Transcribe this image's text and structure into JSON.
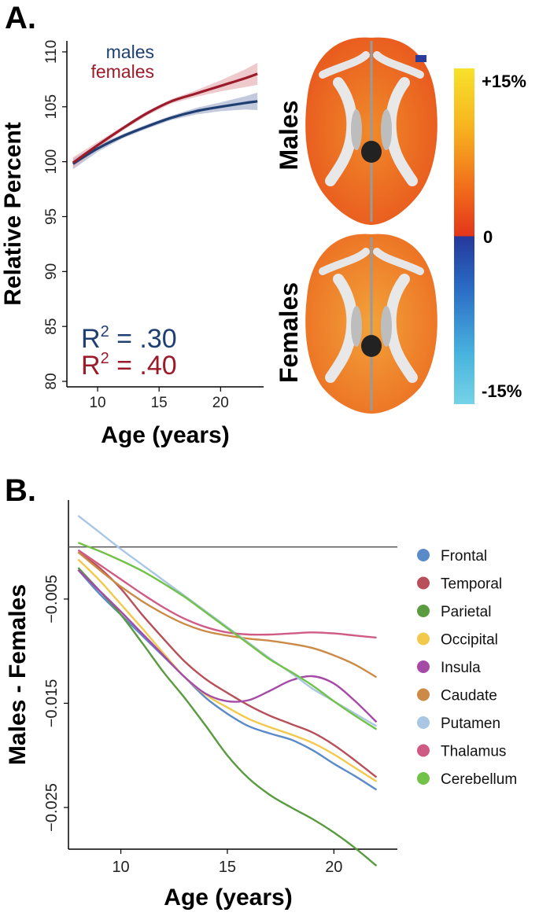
{
  "panel_a_letter": "A.",
  "panel_b_letter": "B.",
  "brain_maps": {
    "males_label": "Males",
    "females_label": "Females",
    "colorbar": {
      "top": "+15%",
      "mid": "0",
      "bottom": "-15%"
    }
  },
  "chart_data": [
    {
      "type": "line",
      "ylabel": "Relative Percent",
      "xlabel": "Age (years)",
      "xlim": [
        7.5,
        23.5
      ],
      "ylim": [
        79.5,
        111
      ],
      "xticks": [
        10,
        15,
        20
      ],
      "yticks": [
        80,
        85,
        90,
        95,
        100,
        105,
        110
      ],
      "series": [
        {
          "name": "males",
          "color": "#1f3f73",
          "band_color": "#a9b4cf",
          "x": [
            8,
            10,
            12,
            14,
            16,
            18,
            20,
            22,
            23
          ],
          "y": [
            99.8,
            101.2,
            102.3,
            103.2,
            104.0,
            104.6,
            105.0,
            105.35,
            105.5
          ],
          "band": [
            0.5,
            0.3,
            0.2,
            0.2,
            0.2,
            0.3,
            0.4,
            0.6,
            0.8
          ]
        },
        {
          "name": "females",
          "color": "#9b1b2b",
          "band_color": "#e7b3b8",
          "x": [
            8,
            10,
            12,
            14,
            16,
            18,
            20,
            22,
            23
          ],
          "y": [
            99.9,
            101.5,
            103.0,
            104.4,
            105.5,
            106.2,
            106.9,
            107.6,
            108.0
          ],
          "band": [
            0.5,
            0.3,
            0.2,
            0.2,
            0.2,
            0.3,
            0.5,
            0.8,
            1.0
          ]
        }
      ],
      "stats": [
        {
          "label": "R",
          "sup": "2",
          "text": " = .30",
          "color": "#1f3f73"
        },
        {
          "label": "R",
          "sup": "2",
          "text": " = .40",
          "color": "#9b1b2b"
        }
      ]
    },
    {
      "type": "line",
      "ylabel": "Males - Females",
      "xlabel": "Age (years)",
      "xlim": [
        7.8,
        22.5
      ],
      "ylim": [
        -0.029,
        0.0045
      ],
      "xticks": [
        10,
        15,
        20
      ],
      "yticks": [
        -0.005,
        -0.015,
        -0.025
      ],
      "ytick_labels": [
        "−0.005",
        "−0.015",
        "−0.025"
      ],
      "reference_line_y": 0,
      "series": [
        {
          "name": "Frontal",
          "color": "#5b8ac9",
          "x": [
            8,
            9,
            10,
            11,
            12,
            13,
            14,
            15,
            16,
            17,
            18,
            19,
            20,
            21,
            22
          ],
          "y": [
            -0.0022,
            -0.0045,
            -0.0065,
            -0.0085,
            -0.0105,
            -0.0125,
            -0.0145,
            -0.016,
            -0.0172,
            -0.0179,
            -0.0185,
            -0.0195,
            -0.0208,
            -0.022,
            -0.0233
          ]
        },
        {
          "name": "Temporal",
          "color": "#b8505a",
          "x": [
            8,
            9,
            10,
            11,
            12,
            13,
            14,
            15,
            16,
            17,
            18,
            19,
            20,
            21,
            22
          ],
          "y": [
            -0.0005,
            -0.002,
            -0.004,
            -0.0065,
            -0.0088,
            -0.011,
            -0.0127,
            -0.014,
            -0.0152,
            -0.0162,
            -0.017,
            -0.0178,
            -0.019,
            -0.0205,
            -0.0221
          ]
        },
        {
          "name": "Parietal",
          "color": "#5a9b3f",
          "x": [
            8,
            9,
            10,
            11,
            12,
            13,
            14,
            15,
            16,
            17,
            18,
            19,
            20,
            21,
            22
          ],
          "y": [
            -0.002,
            -0.0042,
            -0.0065,
            -0.0092,
            -0.012,
            -0.0145,
            -0.0172,
            -0.02,
            -0.0222,
            -0.0238,
            -0.025,
            -0.0261,
            -0.0274,
            -0.0289,
            -0.0306
          ]
        },
        {
          "name": "Occipital",
          "color": "#f2c94c",
          "x": [
            8,
            9,
            10,
            11,
            12,
            13,
            14,
            15,
            16,
            17,
            18,
            19,
            20,
            21,
            22
          ],
          "y": [
            -0.0012,
            -0.0032,
            -0.0055,
            -0.0078,
            -0.0102,
            -0.0125,
            -0.0142,
            -0.0154,
            -0.0165,
            -0.0173,
            -0.018,
            -0.0188,
            -0.0199,
            -0.0212,
            -0.0225
          ]
        },
        {
          "name": "Insula",
          "color": "#a54aa6",
          "x": [
            8,
            9,
            10,
            11,
            12,
            13,
            14,
            15,
            16,
            17,
            18,
            19,
            20,
            21,
            22
          ],
          "y": [
            -0.0022,
            -0.0042,
            -0.0062,
            -0.0083,
            -0.0104,
            -0.0125,
            -0.0141,
            -0.0148,
            -0.0147,
            -0.0138,
            -0.0128,
            -0.0124,
            -0.0131,
            -0.0148,
            -0.0168
          ]
        },
        {
          "name": "Caudate",
          "color": "#cc8a47",
          "x": [
            8,
            9,
            10,
            11,
            12,
            13,
            14,
            15,
            16,
            17,
            18,
            19,
            20,
            21,
            22
          ],
          "y": [
            -0.0005,
            -0.0022,
            -0.0038,
            -0.0052,
            -0.0064,
            -0.0074,
            -0.0081,
            -0.0085,
            -0.0088,
            -0.009,
            -0.0093,
            -0.0097,
            -0.0104,
            -0.0113,
            -0.0125
          ]
        },
        {
          "name": "Putamen",
          "color": "#a9c6e3",
          "x": [
            8,
            9,
            10,
            11,
            12,
            13,
            14,
            15,
            16,
            17,
            18,
            19,
            20,
            21,
            22
          ],
          "y": [
            0.003,
            0.0014,
            -0.0002,
            -0.0017,
            -0.0032,
            -0.0047,
            -0.0062,
            -0.0077,
            -0.0092,
            -0.0107,
            -0.0121,
            -0.0136,
            -0.0148,
            -0.016,
            -0.0172
          ]
        },
        {
          "name": "Thalamus",
          "color": "#cf5b85",
          "x": [
            8,
            9,
            10,
            11,
            12,
            13,
            14,
            15,
            16,
            17,
            18,
            19,
            20,
            21,
            22
          ],
          "y": [
            -0.0003,
            -0.0017,
            -0.0031,
            -0.0045,
            -0.0058,
            -0.0069,
            -0.0077,
            -0.0082,
            -0.0084,
            -0.0084,
            -0.0083,
            -0.0082,
            -0.0083,
            -0.0085,
            -0.0087
          ]
        },
        {
          "name": "Cerebellum",
          "color": "#72c24a",
          "x": [
            8,
            9,
            10,
            11,
            12,
            13,
            14,
            15,
            16,
            17,
            18,
            19,
            20,
            21,
            22
          ],
          "y": [
            0.0004,
            -0.0004,
            -0.0013,
            -0.0023,
            -0.0035,
            -0.0048,
            -0.0063,
            -0.0078,
            -0.0093,
            -0.0108,
            -0.012,
            -0.0133,
            -0.0148,
            -0.0162,
            -0.0175
          ]
        }
      ]
    }
  ]
}
